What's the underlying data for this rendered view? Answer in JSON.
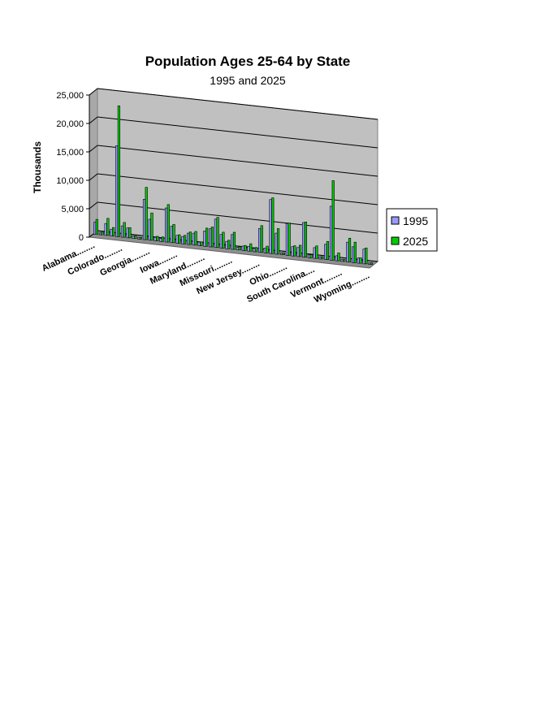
{
  "chart_data": {
    "type": "bar3d",
    "title": "Population Ages 25-64 by State",
    "subtitle": "1995 and 2025",
    "y_label": "Thousands",
    "categories": [
      "Alabama........",
      null,
      null,
      null,
      null,
      "Colorado........",
      null,
      null,
      null,
      null,
      "Georgia........",
      null,
      null,
      null,
      null,
      "Iowa........",
      null,
      null,
      null,
      null,
      "Maryland........",
      null,
      null,
      null,
      null,
      "Missouri........",
      null,
      null,
      null,
      null,
      "New Jersey........",
      null,
      null,
      null,
      null,
      "Ohio........",
      null,
      null,
      null,
      null,
      "South Carolina....",
      null,
      null,
      null,
      null,
      "Vermont........",
      null,
      null,
      null,
      null,
      "Wyoming........"
    ],
    "series": [
      {
        "name": "1995",
        "color": "#9999ff",
        "values": [
          2100,
          320,
          2100,
          1200,
          16000,
          2000,
          1750,
          380,
          310,
          7100,
          3700,
          620,
          550,
          6000,
          2900,
          1400,
          1300,
          2000,
          2100,
          640,
          2700,
          3200,
          5000,
          2400,
          1300,
          2600,
          450,
          800,
          850,
          600,
          4200,
          850,
          9500,
          3700,
          320,
          5600,
          1650,
          1600,
          6100,
          520,
          1900,
          360,
          2700,
          9500,
          900,
          300,
          3500,
          2800,
          950,
          2600,
          250
        ]
      },
      {
        "name": "2025",
        "color": "#00cc00",
        "values": [
          2600,
          450,
          3000,
          1500,
          23000,
          2600,
          1800,
          440,
          280,
          9200,
          4800,
          800,
          800,
          6600,
          3200,
          1500,
          1500,
          2200,
          2400,
          680,
          3200,
          3500,
          5300,
          2800,
          1500,
          3000,
          550,
          900,
          1300,
          750,
          4700,
          1200,
          9800,
          4500,
          330,
          5700,
          1800,
          2000,
          6200,
          550,
          2200,
          400,
          3200,
          14000,
          1400,
          340,
          4200,
          3600,
          950,
          2800,
          300
        ]
      }
    ],
    "ylim": [
      0,
      25000
    ],
    "yticks": [
      0,
      {
        "value": 5000,
        "label": "5,000"
      },
      {
        "value": 10000,
        "label": "10,000"
      },
      {
        "value": 15000,
        "label": "15,000"
      },
      {
        "value": 20000,
        "label": "20,000"
      },
      {
        "value": 25000,
        "label": "25,000"
      }
    ],
    "grid": true,
    "legend": "right"
  }
}
